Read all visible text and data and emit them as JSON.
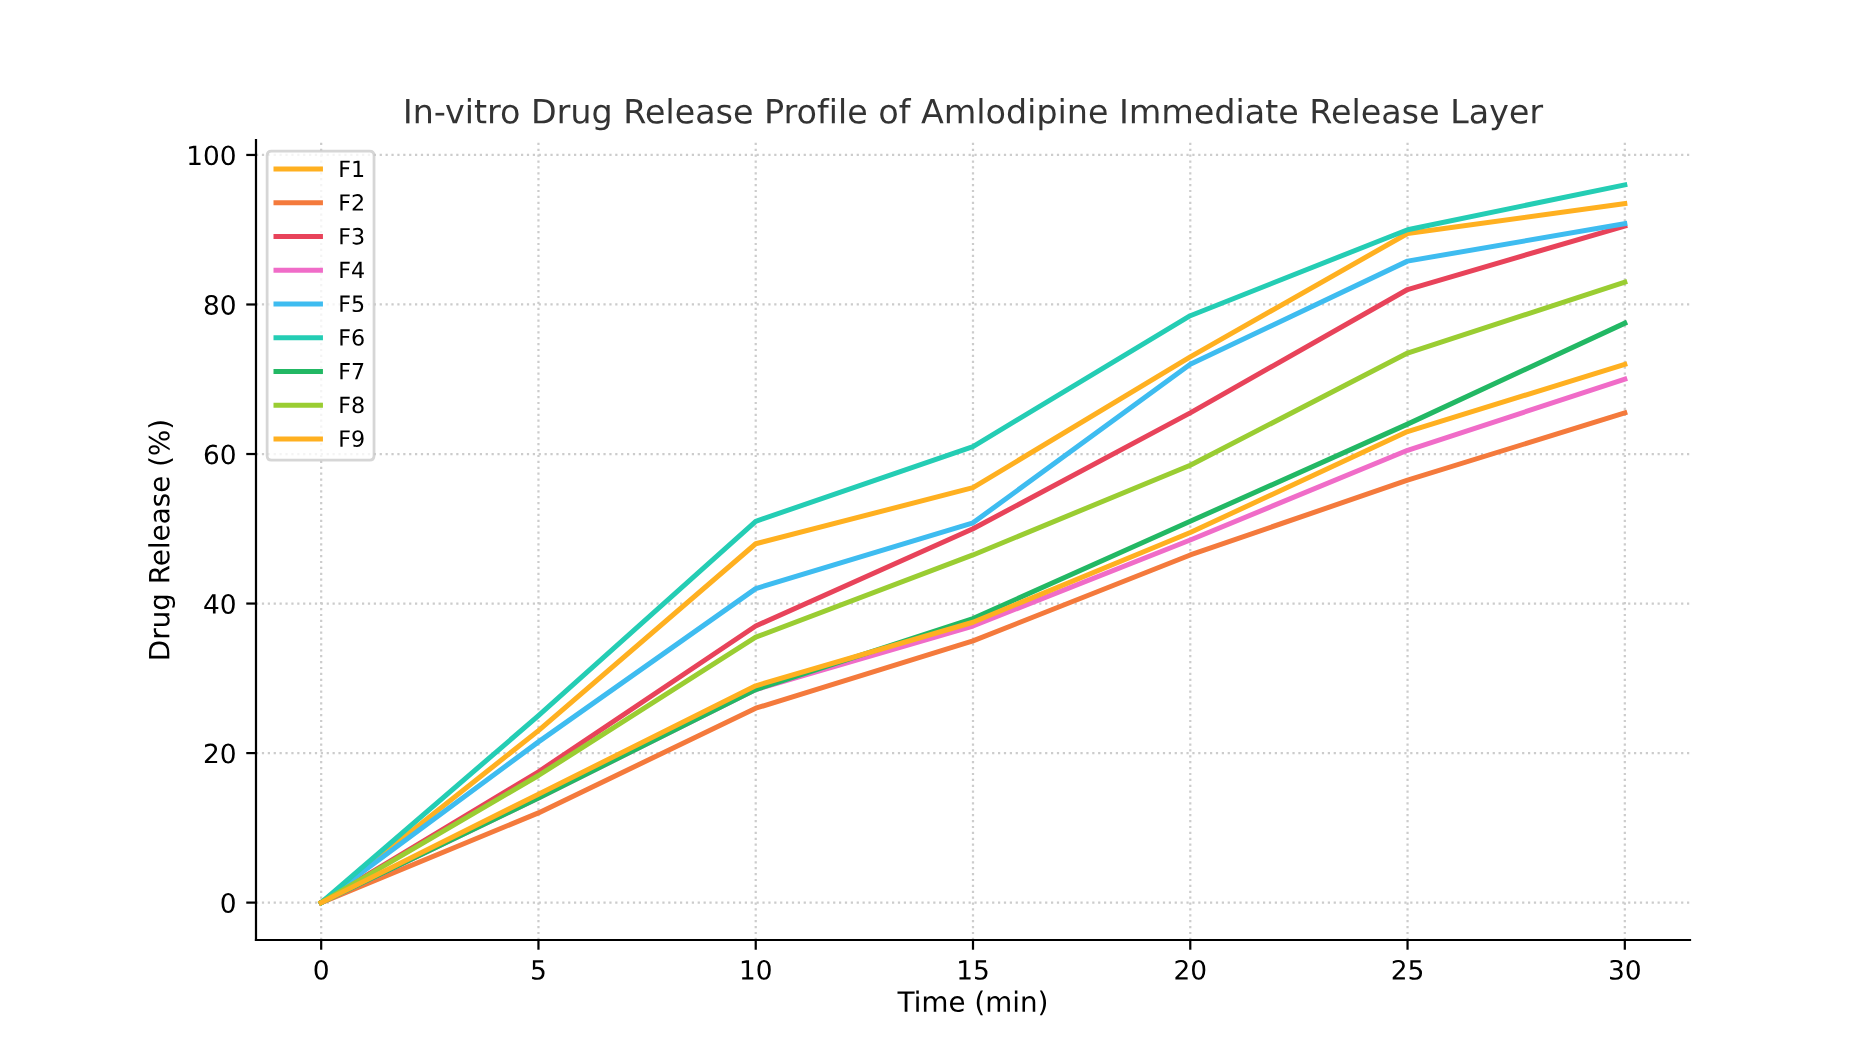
{
  "chart_data": {
    "type": "line",
    "title": "In-vitro Drug Release Profile of Amlodipine Immediate Release Layer",
    "xlabel": "Time (min)",
    "ylabel": "Drug Release (%)",
    "x": [
      0,
      5,
      10,
      15,
      20,
      25,
      30
    ],
    "series": [
      {
        "name": "F1",
        "color": "#ffb020",
        "values": [
          0,
          23,
          48,
          55.5,
          73,
          89.5,
          93.5
        ]
      },
      {
        "name": "F2",
        "color": "#f47a3c",
        "values": [
          0,
          12,
          26,
          35,
          46.5,
          56.5,
          65.5
        ]
      },
      {
        "name": "F3",
        "color": "#e8435a",
        "values": [
          0,
          17.5,
          37,
          50,
          65.5,
          82,
          90.5
        ]
      },
      {
        "name": "F4",
        "color": "#f06cc8",
        "values": [
          0,
          14,
          28.5,
          37,
          48.5,
          60.5,
          70
        ]
      },
      {
        "name": "F5",
        "color": "#3ebcf0",
        "values": [
          0,
          21.5,
          42,
          50.8,
          72,
          85.8,
          90.8
        ]
      },
      {
        "name": "F6",
        "color": "#24cdb4",
        "values": [
          0,
          25,
          51,
          61,
          78.5,
          90,
          96
        ]
      },
      {
        "name": "F7",
        "color": "#22b864",
        "values": [
          0,
          14,
          28.5,
          38,
          51,
          64,
          77.5
        ]
      },
      {
        "name": "F8",
        "color": "#9acd32",
        "values": [
          0,
          17,
          35.5,
          46.5,
          58.5,
          73.5,
          83
        ]
      },
      {
        "name": "F9",
        "color": "#ffb020",
        "values": [
          0,
          14.5,
          29,
          37.5,
          49.5,
          63,
          72
        ]
      }
    ],
    "xlim": [
      -1.5,
      31.5
    ],
    "ylim": [
      -5,
      102
    ],
    "xticks": [
      0,
      5,
      10,
      15,
      20,
      25,
      30
    ],
    "yticks": [
      0,
      20,
      40,
      60,
      80,
      100
    ],
    "grid": true,
    "legend": "top left",
    "marker": "none",
    "line_style": "solid"
  }
}
